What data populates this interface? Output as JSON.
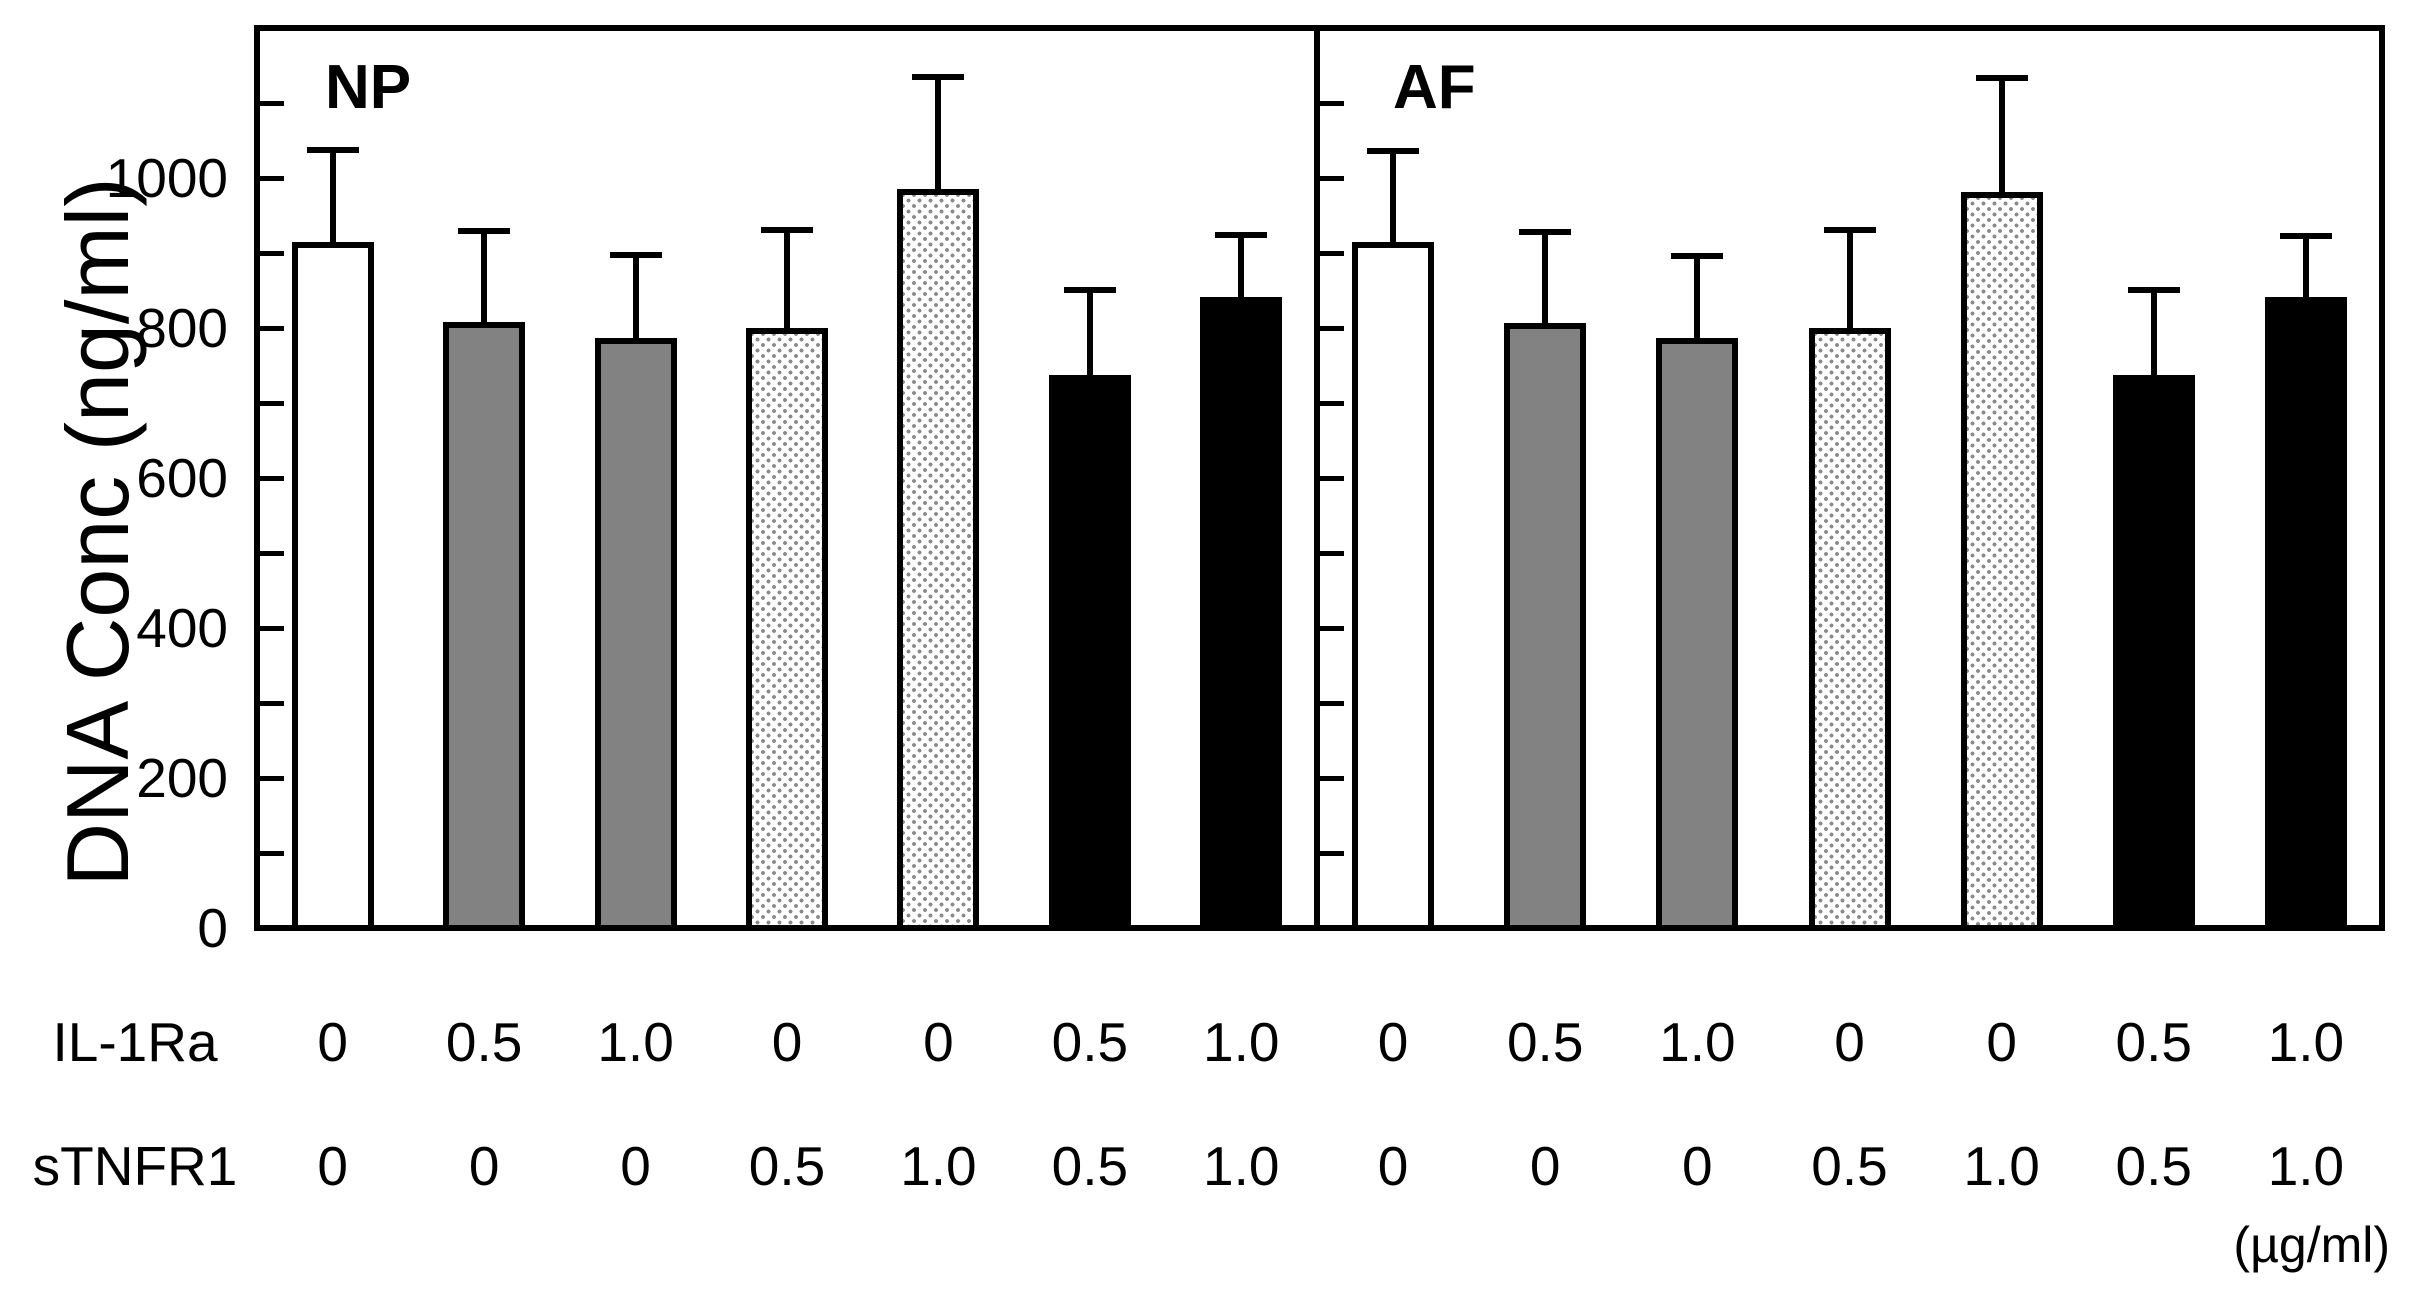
{
  "chart_data": {
    "type": "bar",
    "title": "",
    "ylabel": "DNA Conc (ng/ml)",
    "ylim": [
      0,
      1200
    ],
    "yticks": [
      0,
      200,
      400,
      600,
      800,
      1000
    ],
    "minor_ytick_step": 100,
    "grid": false,
    "error_bars": "upper SD whiskers with caps",
    "unit_label": "(µg/ml)",
    "row_labels": [
      "IL-1Ra",
      "sTNFR1"
    ],
    "panels": [
      {
        "name": "NP",
        "bars": [
          {
            "il1ra": "0",
            "stnfr1": "0",
            "mean": 915,
            "sd": 122,
            "style": "open-white"
          },
          {
            "il1ra": "0.5",
            "stnfr1": "0",
            "mean": 808,
            "sd": 122,
            "style": "solid-gray"
          },
          {
            "il1ra": "1.0",
            "stnfr1": "0",
            "mean": 787,
            "sd": 110,
            "style": "solid-gray"
          },
          {
            "il1ra": "0",
            "stnfr1": "0.5",
            "mean": 800,
            "sd": 131,
            "style": "stippled"
          },
          {
            "il1ra": "0",
            "stnfr1": "1.0",
            "mean": 985,
            "sd": 150,
            "style": "stippled"
          },
          {
            "il1ra": "0.5",
            "stnfr1": "0.5",
            "mean": 737,
            "sd": 114,
            "style": "solid-black"
          },
          {
            "il1ra": "1.0",
            "stnfr1": "1.0",
            "mean": 841,
            "sd": 83,
            "style": "solid-black"
          }
        ]
      },
      {
        "name": "AF",
        "bars": [
          {
            "il1ra": "0",
            "stnfr1": "0",
            "mean": 915,
            "sd": 121,
            "style": "open-white"
          },
          {
            "il1ra": "0.5",
            "stnfr1": "0",
            "mean": 807,
            "sd": 121,
            "style": "solid-gray"
          },
          {
            "il1ra": "1.0",
            "stnfr1": "0",
            "mean": 787,
            "sd": 109,
            "style": "solid-gray"
          },
          {
            "il1ra": "0",
            "stnfr1": "0.5",
            "mean": 800,
            "sd": 131,
            "style": "stippled"
          },
          {
            "il1ra": "0",
            "stnfr1": "1.0",
            "mean": 981,
            "sd": 152,
            "style": "stippled"
          },
          {
            "il1ra": "0.5",
            "stnfr1": "0.5",
            "mean": 737,
            "sd": 114,
            "style": "solid-black"
          },
          {
            "il1ra": "1.0",
            "stnfr1": "1.0",
            "mean": 841,
            "sd": 82,
            "style": "solid-black"
          }
        ]
      }
    ]
  }
}
